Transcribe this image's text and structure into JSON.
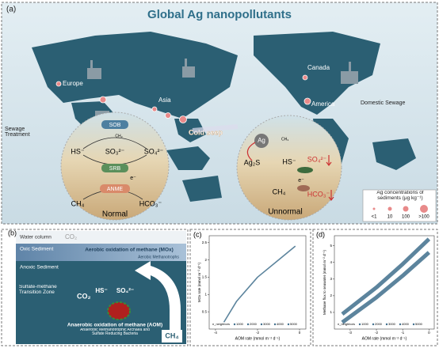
{
  "panel_a": {
    "label": "(a)",
    "title": "Global Ag nanopollutants",
    "places": [
      "Europe",
      "Asia",
      "Canada",
      "America",
      "Cold seep"
    ],
    "sources": [
      "Sewage Treatment",
      "Domestic Sewage"
    ],
    "normal": {
      "sob": "SOB",
      "ch3": "CH₃",
      "hs": "HS⁻",
      "so3": "SO₃²⁻",
      "so4": "SO₄²⁻",
      "srb": "SRB",
      "e": "e⁻",
      "anme": "ANME",
      "ch4": "CH₄",
      "hco3": "HCO₃⁻",
      "caption": "Normal"
    },
    "unnormal": {
      "ag": "Ag",
      "ch3": "CH₃",
      "ag2s": "Ag₂S",
      "hs": "HS⁻",
      "so4": "SO₄²⁻",
      "e": "e⁻",
      "ch4": "CH₄",
      "hco3": "HCO₃⁻",
      "caption": "Unnormal"
    },
    "legend": {
      "title": "Ag concentrations of sediments (μg kg⁻¹)",
      "items": [
        "<1",
        "10",
        "100",
        ">100"
      ]
    }
  },
  "panel_b": {
    "label": "(b)",
    "layers": [
      "Water column",
      "Oxic Sediment",
      "Anoxic Sediment",
      "Sulfate-methane Transition Zone"
    ],
    "co2_top": "CO₂",
    "mox": "Aerobic oxidation of methane (MOx)",
    "mox_sub": "Aerobic Methanotrophs",
    "co2": "CO₂",
    "hs": "HS⁻",
    "so4": "SO₄²⁻",
    "aom": "Anaerobic oxidation of methane (AOM)",
    "aom_sub": "Anaerobic Methanotrophic Archaea and Sulfate Reducing Bacteria",
    "ch4": "CH₄"
  },
  "panel_c": {
    "type": "line",
    "label": "(c)",
    "xlabel": "AOM rate (mmol m⁻² d⁻¹)",
    "ylabel": "MOx rate (mmol m⁻² d⁻¹)",
    "x": [
      -3.6,
      -3,
      -2,
      -1,
      -0.2
    ],
    "series": [
      {
        "color": "#3f6e8c",
        "values": [
          0.2,
          0.8,
          1.5,
          2.0,
          2.4
        ]
      }
    ],
    "xlim": [
      -4.3,
      0.3
    ],
    "xticks": [
      -4,
      -2,
      0
    ],
    "ylim": [
      0,
      2.7
    ],
    "yticks": [
      0.5,
      1,
      1.5,
      2,
      2.5
    ],
    "legend_title": "n_neighbors",
    "legend_items": [
      "1000",
      "2000",
      "3000",
      "4000",
      "5000"
    ]
  },
  "panel_d": {
    "type": "band",
    "label": "(d)",
    "xlabel": "AOM rate (mmol m⁻² d⁻¹)",
    "ylabel": "Methane flux to seawater (mmol m⁻² d⁻¹)",
    "x": [
      -3.3,
      -2,
      -1,
      0
    ],
    "series": [
      {
        "color": "#3f6e8c",
        "values": [
          0.4,
          1.9,
          3.2,
          4.6
        ]
      },
      {
        "color": "#3f6e8c",
        "values": [
          0.9,
          2.5,
          3.9,
          5.4
        ]
      }
    ],
    "xlim": [
      -3.6,
      0.2
    ],
    "xticks": [
      -3,
      -2,
      -1,
      0
    ],
    "ylim": [
      0,
      5.6
    ],
    "yticks": [
      1,
      2,
      3,
      4,
      5
    ],
    "legend_title": "n_neighbors",
    "legend_items": [
      "1000",
      "2000",
      "3000",
      "4000",
      "5000"
    ]
  }
}
